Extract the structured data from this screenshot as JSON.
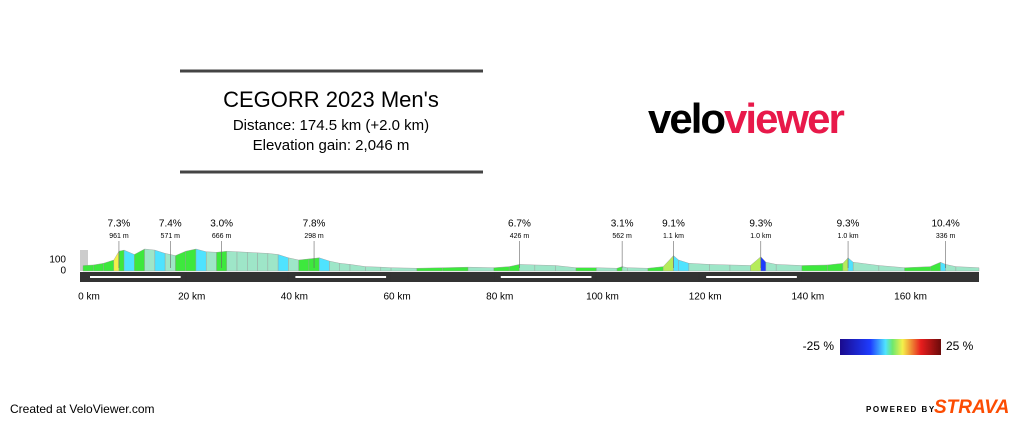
{
  "header": {
    "title": "CEGORR 2023 Men's",
    "distance": "Distance: 174.5 km (+2.0 km)",
    "elevation_gain": "Elevation gain: 2,046 m"
  },
  "logo": {
    "part1": "velo",
    "part2": "viewer"
  },
  "chart_data": {
    "type": "area",
    "x": [
      0,
      2,
      4,
      6,
      7,
      8,
      10,
      12,
      14,
      16,
      18,
      20,
      22,
      24,
      26,
      28,
      30,
      32,
      34,
      36,
      38,
      40,
      42,
      44,
      46,
      48,
      50,
      52,
      55,
      58,
      60,
      65,
      70,
      75,
      80,
      83,
      85,
      88,
      92,
      96,
      100,
      104,
      105,
      106,
      110,
      113,
      115,
      116,
      118,
      122,
      126,
      130,
      132,
      133,
      135,
      140,
      145,
      148,
      149,
      150,
      155,
      160,
      165,
      167,
      168,
      170,
      174.5
    ],
    "values": [
      50,
      55,
      70,
      100,
      180,
      190,
      150,
      200,
      190,
      160,
      140,
      180,
      200,
      175,
      170,
      180,
      175,
      170,
      165,
      160,
      150,
      120,
      100,
      110,
      120,
      90,
      70,
      60,
      40,
      35,
      30,
      25,
      30,
      35,
      30,
      40,
      60,
      55,
      50,
      30,
      30,
      25,
      40,
      30,
      25,
      40,
      140,
      100,
      70,
      60,
      55,
      50,
      130,
      80,
      60,
      50,
      55,
      70,
      120,
      80,
      50,
      30,
      40,
      80,
      60,
      40,
      30
    ],
    "xlim": [
      0,
      174.5
    ],
    "ylim": [
      0,
      250
    ],
    "xticks": [
      {
        "value": 0,
        "label": "0 km"
      },
      {
        "value": 20,
        "label": "20 km"
      },
      {
        "value": 40,
        "label": "40 km"
      },
      {
        "value": 60,
        "label": "60 km"
      },
      {
        "value": 80,
        "label": "80 km"
      },
      {
        "value": 100,
        "label": "100 km"
      },
      {
        "value": 120,
        "label": "120 km"
      },
      {
        "value": 140,
        "label": "140 km"
      },
      {
        "value": 160,
        "label": "160 km"
      }
    ],
    "yticks": [
      0,
      100
    ],
    "climbs": [
      {
        "x": 7,
        "gradient": "7.3%",
        "length": "961 m"
      },
      {
        "x": 17,
        "gradient": "7.4%",
        "length": "571 m"
      },
      {
        "x": 27,
        "gradient": "3.0%",
        "length": "666 m"
      },
      {
        "x": 45,
        "gradient": "7.8%",
        "length": "298 m"
      },
      {
        "x": 85,
        "gradient": "6.7%",
        "length": "426 m"
      },
      {
        "x": 105,
        "gradient": "3.1%",
        "length": "562 m"
      },
      {
        "x": 115,
        "gradient": "9.1%",
        "length": "1.1 km"
      },
      {
        "x": 132,
        "gradient": "9.3%",
        "length": "1.0 km"
      },
      {
        "x": 149,
        "gradient": "9.3%",
        "length": "1.0 km"
      },
      {
        "x": 168,
        "gradient": "10.4%",
        "length": "336 m"
      }
    ],
    "colorbar": {
      "min_label": "-25 %",
      "max_label": "25 %"
    }
  },
  "footer": {
    "credit": "Created at VeloViewer.com",
    "powered_by": "POWERED BY",
    "strava": "STRAVA"
  }
}
